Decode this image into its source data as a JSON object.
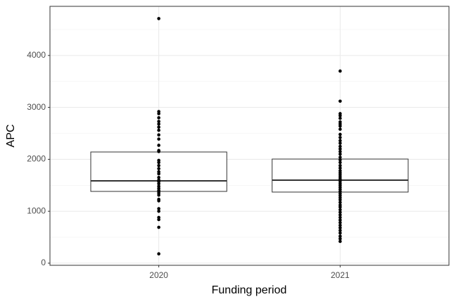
{
  "chart_data": {
    "type": "box",
    "x_label": "Funding period",
    "y_label": "APC",
    "categories": [
      "2020",
      "2021"
    ],
    "ylim": [
      -41,
      4946
    ],
    "yticks": [
      0,
      1000,
      2000,
      3000,
      4000
    ],
    "grid": true,
    "box_color": "#333333",
    "point_color": "#000000",
    "boxes": [
      {
        "lower": 1382,
        "median": 1585,
        "upper": 2141
      },
      {
        "lower": 1369,
        "median": 1599,
        "upper": 2005
      }
    ],
    "points": [
      [
        4710,
        2920,
        2880,
        2800,
        2730,
        2680,
        2620,
        2560,
        2470,
        2390,
        2270,
        2170,
        2150,
        1980,
        1940,
        1880,
        1820,
        1760,
        1720,
        1650,
        1600,
        1570,
        1530,
        1480,
        1440,
        1400,
        1380,
        1350,
        1310,
        1230,
        1200,
        1050,
        1000,
        880,
        840,
        690,
        180
      ],
      [
        3700,
        3120,
        2880,
        2840,
        2790,
        2720,
        2680,
        2640,
        2580,
        2480,
        2420,
        2360,
        2310,
        2250,
        2200,
        2150,
        2100,
        2040,
        1990,
        1940,
        1880,
        1830,
        1780,
        1740,
        1700,
        1660,
        1620,
        1580,
        1540,
        1500,
        1460,
        1420,
        1380,
        1340,
        1300,
        1260,
        1220,
        1170,
        1120,
        1080,
        1030,
        980,
        930,
        880,
        830,
        780,
        730,
        680,
        630,
        580,
        520,
        470,
        420
      ]
    ]
  }
}
